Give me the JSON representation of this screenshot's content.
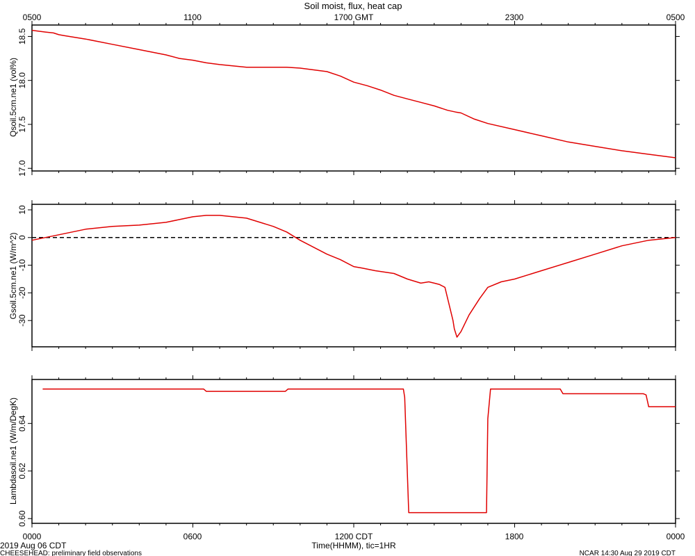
{
  "chart_data": {
    "title": "Soil moist, flux, heat cap",
    "x_top_ticks": [
      "0500",
      "1100",
      "1700 GMT",
      "2300",
      "0500"
    ],
    "x_bottom_ticks": [
      "0000",
      "0600",
      "1200 CDT",
      "1800",
      "0000"
    ],
    "x_hours": [
      0,
      6,
      12,
      18,
      24
    ],
    "xlabel": "Time(HHMM), tic=1HR",
    "date_label": "2019 Aug 06 CDT",
    "footer_left": "CHEESEHEAD: preliminary field observations",
    "footer_right": "NCAR 14:30 Aug 29 2019 CDT",
    "line_color": "#e00000",
    "panels": [
      {
        "type": "line",
        "ylabel": "Qsoil.5cm.ne1 (vol%)",
        "ylim": [
          16.97,
          18.63
        ],
        "yticks": [
          17.0,
          17.5,
          18.0,
          18.5
        ],
        "ytick_labels": [
          "17.0",
          "17.5",
          "18.0",
          "18.5"
        ],
        "zero_line": false,
        "x": [
          0,
          0.5,
          0.8,
          1,
          1.2,
          2,
          3,
          4,
          5,
          5.5,
          6,
          6.5,
          7,
          8,
          9,
          9.5,
          10,
          11,
          11.5,
          12,
          12.5,
          13,
          13.5,
          14,
          14.5,
          15,
          15.5,
          15.8,
          16,
          16.5,
          17,
          18,
          19,
          20,
          21,
          22,
          23,
          24
        ],
        "y": [
          18.57,
          18.55,
          18.54,
          18.52,
          18.51,
          18.47,
          18.41,
          18.35,
          18.29,
          18.25,
          18.23,
          18.2,
          18.18,
          18.15,
          18.15,
          18.15,
          18.14,
          18.1,
          18.05,
          17.98,
          17.94,
          17.89,
          17.83,
          17.79,
          17.75,
          17.71,
          17.66,
          17.64,
          17.63,
          17.56,
          17.51,
          17.44,
          17.37,
          17.3,
          17.25,
          17.2,
          17.16,
          17.12
        ]
      },
      {
        "type": "line",
        "ylabel": "Gsoil.5cm.ne1 (W/m^2)",
        "ylim": [
          -39.5,
          12
        ],
        "yticks": [
          10,
          0,
          -10,
          -20,
          -30
        ],
        "ytick_labels": [
          "10",
          "0",
          "-10",
          "-20",
          "-30"
        ],
        "zero_line": true,
        "x": [
          0,
          1,
          2,
          3,
          4,
          5,
          5.5,
          6,
          6.5,
          7,
          8,
          9,
          9.5,
          10,
          11,
          11.5,
          12,
          12.3,
          12.8,
          13.5,
          14,
          14.5,
          14.8,
          15,
          15.2,
          15.4,
          15.7,
          15.75,
          15.85,
          16,
          16.3,
          16.7,
          17,
          17.5,
          18,
          19,
          20,
          21,
          22,
          23,
          24
        ],
        "y": [
          -1,
          1,
          3,
          4,
          4.5,
          5.5,
          6.5,
          7.5,
          8,
          8,
          7,
          4,
          2,
          -1,
          -6,
          -8,
          -10.5,
          -11,
          -12,
          -13,
          -15,
          -16.5,
          -16,
          -16.5,
          -17,
          -18,
          -30,
          -33,
          -36,
          -34,
          -28,
          -22,
          -18,
          -16,
          -15,
          -12,
          -9,
          -6,
          -3,
          -1,
          0
        ]
      },
      {
        "type": "line",
        "ylabel": "Lambdasoil.ne1 (W/m/DegK)",
        "ylim": [
          0.598,
          0.6585
        ],
        "yticks": [
          0.6,
          0.62,
          0.64
        ],
        "ytick_labels": [
          "0.60",
          "0.62",
          "0.64"
        ],
        "zero_line": false,
        "x": [
          0.4,
          6.4,
          6.5,
          9.45,
          9.55,
          13.85,
          13.9,
          14.05,
          16.95,
          17.0,
          17.1,
          19.7,
          19.8,
          22.8,
          22.9,
          23.0,
          24
        ],
        "y": [
          0.6545,
          0.6545,
          0.6535,
          0.6535,
          0.6545,
          0.6545,
          0.651,
          0.6025,
          0.6025,
          0.642,
          0.6545,
          0.6545,
          0.6525,
          0.6525,
          0.652,
          0.647,
          0.647
        ]
      }
    ]
  }
}
